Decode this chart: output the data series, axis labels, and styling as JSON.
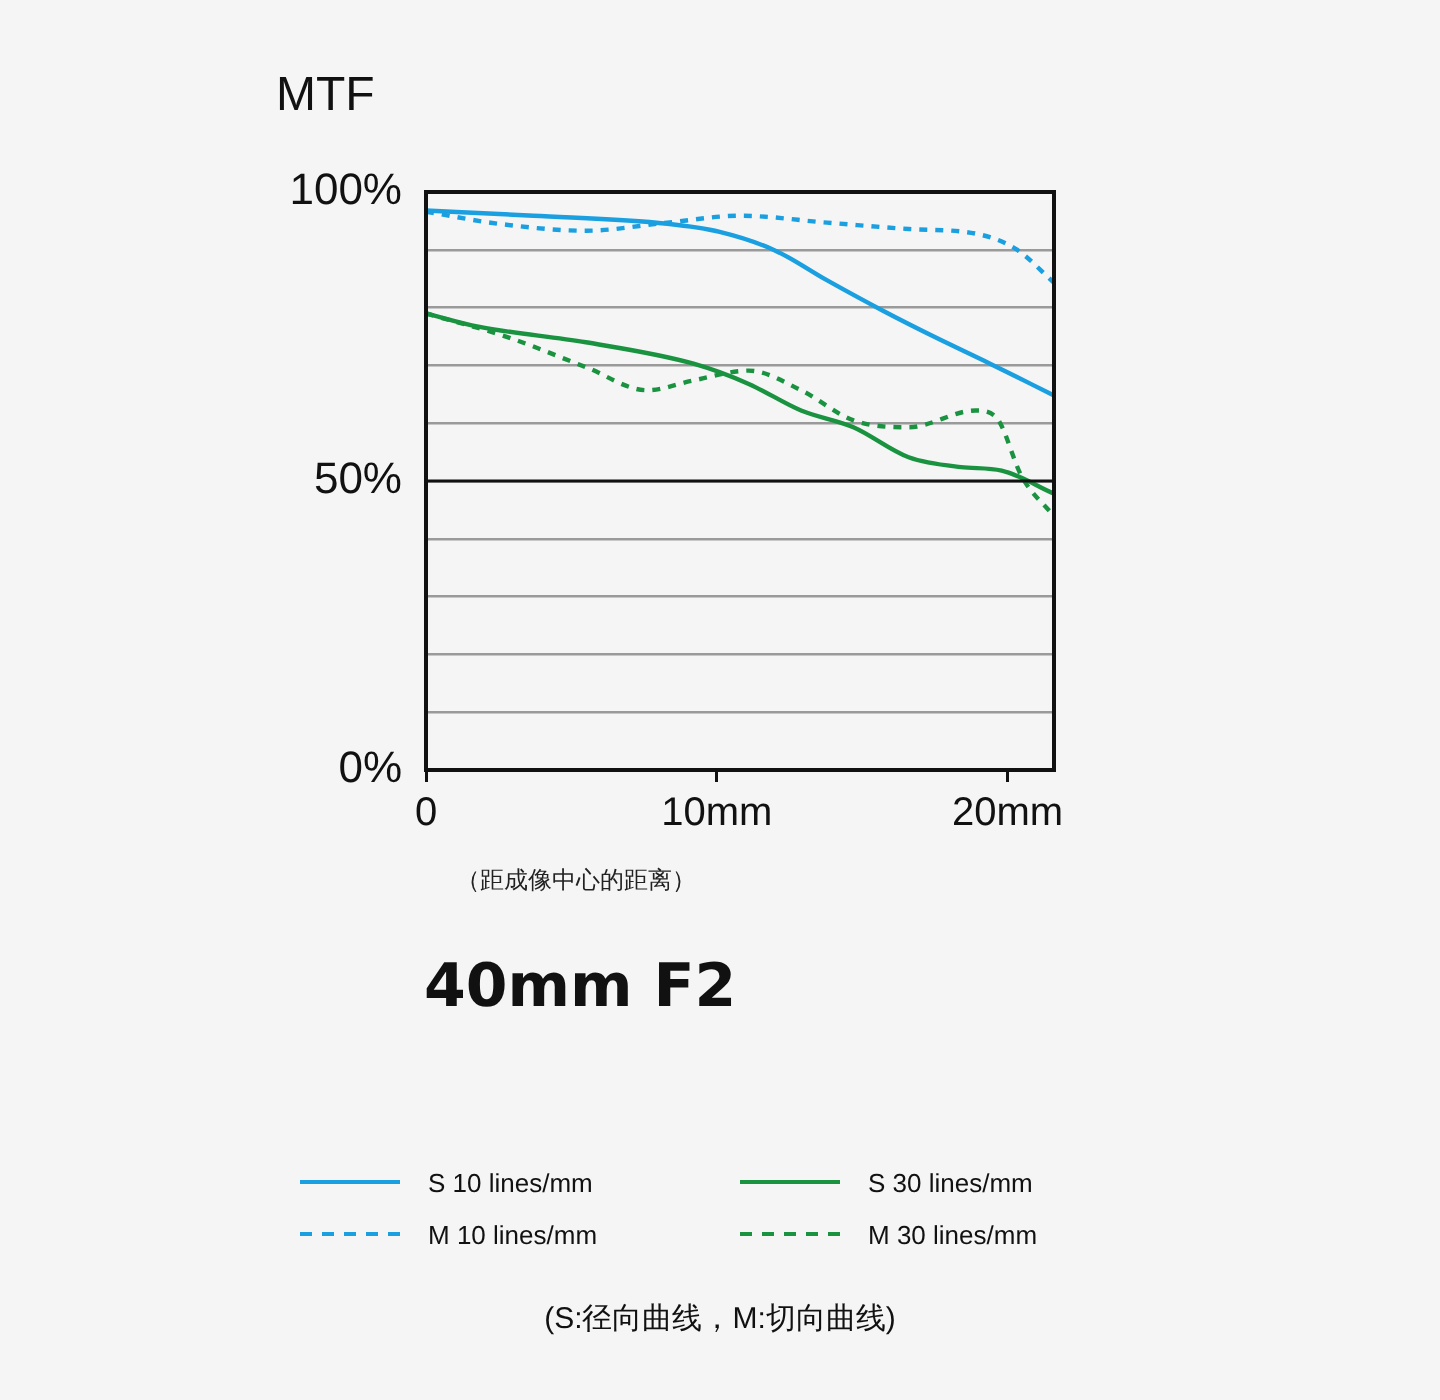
{
  "chart_data": {
    "type": "line",
    "title": "40mm F2",
    "ylabel": "MTF",
    "xlabel": "（距成像中心的距离）",
    "annotations": [
      "(S:径向曲线，M:切向曲线)"
    ],
    "xlim": [
      0,
      21.6
    ],
    "xticks": [
      0,
      {
        "value": 10,
        "label": "10mm"
      },
      {
        "value": 20,
        "label": "20mm"
      }
    ],
    "ylim": [
      0,
      100
    ],
    "yticks": [
      {
        "value": 0,
        "label": "0%"
      },
      {
        "value": 10,
        "label": null
      },
      {
        "value": 20,
        "label": null
      },
      {
        "value": 30,
        "label": null
      },
      {
        "value": 40,
        "label": null
      },
      {
        "value": 50,
        "label": "50%"
      },
      {
        "value": 60,
        "label": null
      },
      {
        "value": 70,
        "label": null
      },
      {
        "value": 80,
        "label": null
      },
      {
        "value": 90,
        "label": null
      },
      {
        "value": 100,
        "label": "100%"
      }
    ],
    "grid": "y",
    "legend": "bottom",
    "marker": "none",
    "ref_lines": [
      {
        "axis": "y",
        "value": 50,
        "label": null,
        "color": "#111111"
      }
    ],
    "series": [
      {
        "name": "S 10 lines/mm",
        "color": "#1a9fe0",
        "type": "line",
        "line_style": "solid",
        "x": [
          0,
          3.7,
          8.3,
          10.1,
          12.0,
          13.8,
          15.7,
          17.5,
          19.4,
          21.6
        ],
        "values": [
          96.8,
          95.9,
          94.5,
          93.1,
          89.9,
          84.7,
          79.5,
          74.9,
          70.3,
          64.8
        ]
      },
      {
        "name": "M 10 lines/mm",
        "color": "#1a9fe0",
        "type": "line",
        "line_style": "dashed",
        "x": [
          0,
          2.5,
          5.5,
          8.3,
          10.8,
          13.8,
          16.6,
          18.9,
          20.3,
          21.6
        ],
        "values": [
          96.6,
          94.5,
          93.3,
          94.7,
          95.9,
          94.7,
          93.6,
          92.8,
          90.1,
          84.3
        ]
      },
      {
        "name": "S 30 lines/mm",
        "color": "#1a9340",
        "type": "line",
        "line_style": "solid",
        "x": [
          0,
          1.8,
          5.5,
          9.2,
          11.1,
          12.9,
          14.7,
          16.6,
          18.4,
          19.8,
          21.6
        ],
        "values": [
          79.0,
          76.7,
          74.0,
          70.3,
          66.8,
          62.2,
          59.3,
          54.1,
          52.4,
          51.8,
          47.8
        ]
      },
      {
        "name": "M 30 lines/mm",
        "color": "#1a9340",
        "type": "line",
        "line_style": "dashed",
        "x": [
          0,
          2.8,
          5.5,
          7.6,
          9.2,
          11.1,
          12.9,
          14.7,
          16.6,
          18.9,
          19.6,
          20.5,
          21.6
        ],
        "values": [
          79.0,
          74.9,
          69.7,
          65.7,
          67.4,
          69.1,
          65.7,
          60.5,
          59.3,
          62.2,
          61.1,
          50.7,
          43.9
        ]
      }
    ]
  }
}
